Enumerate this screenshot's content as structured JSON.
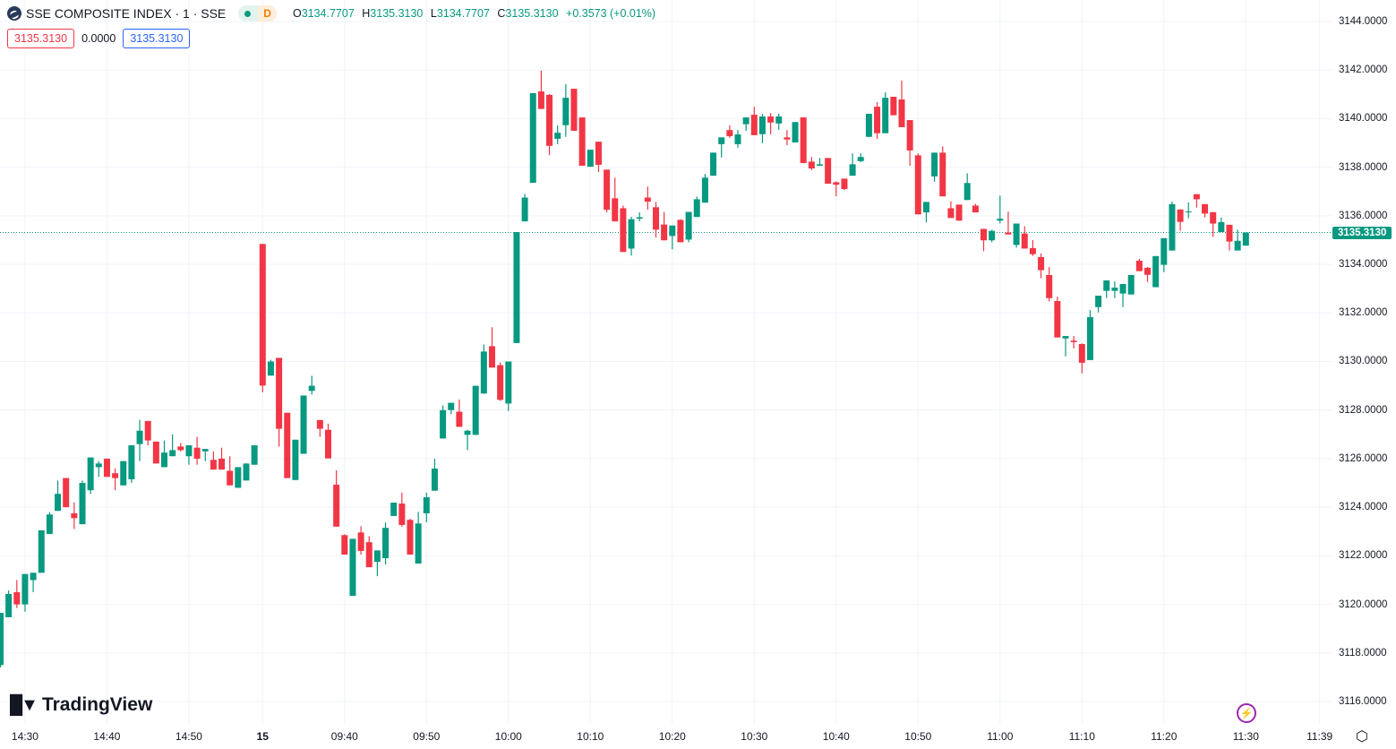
{
  "header": {
    "symbol": "SSE COMPOSITE INDEX · 1 · SSE",
    "badge_letter": "D",
    "o_label": "O",
    "o": "3134.7707",
    "h_label": "H",
    "h": "3135.3130",
    "l_label": "L",
    "l": "3134.7707",
    "c_label": "C",
    "c": "3135.3130",
    "change": "+0.3573 (+0.01%)"
  },
  "row2": {
    "sell": "3135.3130",
    "spread": "0.0000",
    "buy": "3135.3130"
  },
  "last_price": "3135.3130",
  "logo_text": "TradingView",
  "icons": {
    "symbol": "sse-logo-icon",
    "bolt": "lightning-icon",
    "settings": "gear-icon"
  },
  "colors": {
    "up": "#089981",
    "down": "#F23645",
    "grid": "#f0f3fa"
  },
  "chart_data": {
    "type": "candlestick",
    "title": "SSE COMPOSITE INDEX · 1 · SSE",
    "ylim": [
      3116,
      3144
    ],
    "y_ticks": [
      "3116.0000",
      "3118.0000",
      "3120.0000",
      "3122.0000",
      "3124.0000",
      "3126.0000",
      "3128.0000",
      "3130.0000",
      "3132.0000",
      "3134.0000",
      "3136.0000",
      "3138.0000",
      "3140.0000",
      "3142.0000",
      "3144.0000"
    ],
    "x_ticks": [
      {
        "label": "14:30",
        "index": 3
      },
      {
        "label": "14:40",
        "index": 13
      },
      {
        "label": "14:50",
        "index": 23
      },
      {
        "label": "15",
        "index": 32
      },
      {
        "label": "09:40",
        "index": 42
      },
      {
        "label": "09:50",
        "index": 52
      },
      {
        "label": "10:00",
        "index": 62
      },
      {
        "label": "10:10",
        "index": 72
      },
      {
        "label": "10:20",
        "index": 82
      },
      {
        "label": "10:30",
        "index": 92
      },
      {
        "label": "10:40",
        "index": 102
      },
      {
        "label": "10:50",
        "index": 112
      },
      {
        "label": "11:00",
        "index": 122
      },
      {
        "label": "11:10",
        "index": 132
      },
      {
        "label": "11:20",
        "index": 142
      },
      {
        "label": "11:30",
        "index": 152
      },
      {
        "label": "11:39",
        "index": 161
      }
    ],
    "ohlc_fields": [
      "open",
      "high",
      "low",
      "close"
    ],
    "candles": [
      [
        3117.5,
        3119.65,
        3117.4,
        3119.65
      ],
      [
        3119.47,
        3120.57,
        3119.47,
        3120.43
      ],
      [
        3120.5,
        3121.0,
        3119.85,
        3120.0
      ],
      [
        3120.0,
        3121.25,
        3119.7,
        3121.25
      ],
      [
        3121.0,
        3121.3,
        3120.5,
        3121.3
      ],
      [
        3121.3,
        3123.05,
        3121.3,
        3123.05
      ],
      [
        3122.9,
        3123.8,
        3122.9,
        3123.7
      ],
      [
        3123.85,
        3125.1,
        3123.85,
        3124.55
      ],
      [
        3125.2,
        3125.2,
        3124.0,
        3124.0
      ],
      [
        3123.75,
        3124.2,
        3123.1,
        3123.55
      ],
      [
        3123.3,
        3125.1,
        3123.3,
        3125.0
      ],
      [
        3124.7,
        3126.05,
        3124.55,
        3126.05
      ],
      [
        3125.65,
        3125.9,
        3125.25,
        3125.8
      ],
      [
        3126.0,
        3126.0,
        3125.25,
        3125.25
      ],
      [
        3125.4,
        3125.6,
        3124.7,
        3125.2
      ],
      [
        3124.9,
        3125.9,
        3124.9,
        3125.9
      ],
      [
        3125.15,
        3126.55,
        3125.0,
        3126.55
      ],
      [
        3126.6,
        3127.6,
        3125.9,
        3127.15
      ],
      [
        3127.55,
        3127.55,
        3126.55,
        3126.75
      ],
      [
        3126.7,
        3126.7,
        3125.8,
        3125.8
      ],
      [
        3125.65,
        3126.75,
        3125.65,
        3126.25
      ],
      [
        3126.1,
        3127.0,
        3126.1,
        3126.35
      ],
      [
        3126.5,
        3126.65,
        3126.3,
        3126.35
      ],
      [
        3126.1,
        3126.55,
        3125.75,
        3126.55
      ],
      [
        3126.45,
        3126.9,
        3125.75,
        3126.0
      ],
      [
        3126.3,
        3126.4,
        3125.9,
        3126.4
      ],
      [
        3125.95,
        3126.3,
        3125.55,
        3125.55
      ],
      [
        3126.0,
        3126.45,
        3125.55,
        3125.55
      ],
      [
        3125.5,
        3126.1,
        3124.9,
        3124.9
      ],
      [
        3124.8,
        3125.65,
        3124.8,
        3125.65
      ],
      [
        3125.1,
        3125.8,
        3125.1,
        3125.8
      ],
      [
        3125.75,
        3126.55,
        3125.75,
        3126.55
      ],
      [
        3134.84,
        3134.84,
        3128.73,
        3129.01
      ],
      [
        3129.42,
        3130.07,
        3129.42,
        3130.0
      ],
      [
        3130.15,
        3130.15,
        3126.5,
        3127.23
      ],
      [
        3127.89,
        3127.89,
        3125.2,
        3125.2
      ],
      [
        3125.12,
        3126.78,
        3125.12,
        3126.78
      ],
      [
        3126.2,
        3128.6,
        3126.2,
        3128.6
      ],
      [
        3128.79,
        3129.41,
        3128.64,
        3129.0
      ],
      [
        3127.59,
        3127.59,
        3126.9,
        3127.23
      ],
      [
        3127.19,
        3127.44,
        3126.01,
        3126.01
      ],
      [
        3124.93,
        3125.52,
        3123.2,
        3123.2
      ],
      [
        3122.85,
        3122.89,
        3122.05,
        3122.05
      ],
      [
        3120.35,
        3122.7,
        3120.35,
        3122.7
      ],
      [
        3122.96,
        3123.22,
        3122.05,
        3122.2
      ],
      [
        3122.56,
        3122.81,
        3121.53,
        3121.53
      ],
      [
        3121.75,
        3122.22,
        3121.16,
        3122.22
      ],
      [
        3121.9,
        3123.37,
        3121.64,
        3123.15
      ],
      [
        3123.64,
        3124.19,
        3123.64,
        3124.19
      ],
      [
        3124.15,
        3124.6,
        3123.2,
        3123.27
      ],
      [
        3123.48,
        3123.52,
        3122.05,
        3122.05
      ],
      [
        3121.68,
        3123.81,
        3121.68,
        3123.33
      ],
      [
        3123.75,
        3124.6,
        3123.38,
        3124.41
      ],
      [
        3124.68,
        3126.0,
        3124.68,
        3125.59
      ],
      [
        3126.83,
        3128.19,
        3126.83,
        3128.0
      ],
      [
        3128.0,
        3128.3,
        3127.83,
        3128.3
      ],
      [
        3127.93,
        3128.44,
        3127.31,
        3127.31
      ],
      [
        3126.98,
        3127.19,
        3126.35,
        3127.15
      ],
      [
        3126.98,
        3129.0,
        3126.98,
        3129.0
      ],
      [
        3128.68,
        3130.7,
        3128.68,
        3130.41
      ],
      [
        3130.63,
        3131.41,
        3129.75,
        3129.75
      ],
      [
        3129.85,
        3129.96,
        3128.38,
        3128.42
      ],
      [
        3128.27,
        3130.0,
        3127.96,
        3130.0
      ],
      [
        3130.76,
        3135.33,
        3130.76,
        3135.33
      ],
      [
        3135.77,
        3136.9,
        3135.77,
        3136.75
      ],
      [
        3137.36,
        3141.05,
        3137.36,
        3141.05
      ],
      [
        3141.12,
        3141.98,
        3140.4,
        3140.4
      ],
      [
        3140.98,
        3141.01,
        3138.5,
        3138.88
      ],
      [
        3139.17,
        3139.72,
        3138.95,
        3139.42
      ],
      [
        3139.73,
        3141.42,
        3139.25,
        3140.86
      ],
      [
        3141.23,
        3141.23,
        3139.5,
        3139.5
      ],
      [
        3140.05,
        3140.05,
        3138.06,
        3138.06
      ],
      [
        3138.02,
        3138.72,
        3138.02,
        3138.72
      ],
      [
        3139.05,
        3139.05,
        3137.8,
        3138.1
      ],
      [
        3137.9,
        3137.9,
        3136.14,
        3136.25
      ],
      [
        3136.72,
        3137.57,
        3135.77,
        3135.77
      ],
      [
        3136.31,
        3136.42,
        3134.51,
        3134.51
      ],
      [
        3134.65,
        3135.96,
        3134.36,
        3135.86
      ],
      [
        3135.88,
        3136.14,
        3135.77,
        3135.94
      ],
      [
        3136.75,
        3137.2,
        3136.25,
        3136.58
      ],
      [
        3136.35,
        3136.57,
        3135.1,
        3135.43
      ],
      [
        3135.64,
        3136.16,
        3134.99,
        3134.99
      ],
      [
        3135.17,
        3135.6,
        3134.62,
        3135.6
      ],
      [
        3135.83,
        3135.86,
        3134.91,
        3134.91
      ],
      [
        3135.02,
        3136.16,
        3134.91,
        3136.16
      ],
      [
        3135.95,
        3136.79,
        3135.95,
        3136.68
      ],
      [
        3136.54,
        3137.72,
        3136.54,
        3137.57
      ],
      [
        3137.65,
        3138.6,
        3137.65,
        3138.6
      ],
      [
        3138.95,
        3139.23,
        3138.4,
        3139.23
      ],
      [
        3139.53,
        3139.72,
        3139.21,
        3139.28
      ],
      [
        3138.95,
        3139.53,
        3138.8,
        3139.35
      ],
      [
        3139.77,
        3140.05,
        3139.5,
        3140.05
      ],
      [
        3140.16,
        3140.49,
        3139.32,
        3139.32
      ],
      [
        3139.36,
        3140.2,
        3138.99,
        3140.09
      ],
      [
        3140.09,
        3140.23,
        3139.36,
        3139.84
      ],
      [
        3139.8,
        3140.2,
        3139.54,
        3140.09
      ],
      [
        3139.23,
        3139.53,
        3138.91,
        3139.14
      ],
      [
        3139.02,
        3139.86,
        3139.02,
        3139.86
      ],
      [
        3140.05,
        3140.05,
        3138.17,
        3138.17
      ],
      [
        3138.23,
        3138.42,
        3137.88,
        3137.95
      ],
      [
        3138.06,
        3138.38,
        3138.06,
        3138.12
      ],
      [
        3138.38,
        3138.38,
        3137.32,
        3137.32
      ],
      [
        3137.38,
        3137.42,
        3136.8,
        3137.28
      ],
      [
        3137.53,
        3137.53,
        3137.06,
        3137.1
      ],
      [
        3137.65,
        3138.57,
        3137.65,
        3138.12
      ],
      [
        3138.25,
        3138.57,
        3138.21,
        3138.42
      ],
      [
        3139.25,
        3140.2,
        3139.25,
        3140.2
      ],
      [
        3140.49,
        3140.68,
        3139.17,
        3139.4
      ],
      [
        3139.4,
        3141.09,
        3139.4,
        3140.86
      ],
      [
        3140.9,
        3140.9,
        3140.14,
        3140.14
      ],
      [
        3140.79,
        3141.57,
        3139.65,
        3139.65
      ],
      [
        3139.94,
        3139.94,
        3138.06,
        3138.69
      ],
      [
        3138.49,
        3138.57,
        3136.06,
        3136.06
      ],
      [
        3136.14,
        3136.57,
        3135.73,
        3136.57
      ],
      [
        3137.62,
        3138.6,
        3137.4,
        3138.6
      ],
      [
        3138.6,
        3138.86,
        3136.8,
        3136.8
      ],
      [
        3136.31,
        3136.6,
        3135.91,
        3135.91
      ],
      [
        3136.46,
        3136.46,
        3135.8,
        3135.8
      ],
      [
        3136.65,
        3137.75,
        3136.65,
        3137.35
      ],
      [
        3136.42,
        3136.49,
        3136.14,
        3136.14
      ],
      [
        3135.46,
        3135.46,
        3134.54,
        3134.99
      ],
      [
        3134.99,
        3135.42,
        3134.91,
        3135.38
      ],
      [
        3135.8,
        3136.83,
        3135.69,
        3135.88
      ],
      [
        3135.31,
        3136.17,
        3135.23,
        3135.23
      ],
      [
        3134.8,
        3135.68,
        3134.69,
        3135.68
      ],
      [
        3135.27,
        3135.57,
        3134.65,
        3134.65
      ],
      [
        3134.67,
        3135.0,
        3134.35,
        3134.42
      ],
      [
        3134.3,
        3134.45,
        3133.43,
        3133.76
      ],
      [
        3133.56,
        3133.89,
        3132.47,
        3132.61
      ],
      [
        3132.49,
        3132.67,
        3130.99,
        3130.99
      ],
      [
        3130.95,
        3131.05,
        3130.21,
        3131.05
      ],
      [
        3130.86,
        3131.05,
        3130.54,
        3130.8
      ],
      [
        3130.72,
        3130.75,
        3129.51,
        3129.95
      ],
      [
        3130.06,
        3132.12,
        3130.06,
        3131.83
      ],
      [
        3132.24,
        3132.71,
        3132.02,
        3132.71
      ],
      [
        3132.91,
        3133.34,
        3132.61,
        3133.34
      ],
      [
        3132.91,
        3133.3,
        3132.61,
        3133.04
      ],
      [
        3132.8,
        3133.19,
        3132.24,
        3133.19
      ],
      [
        3132.76,
        3133.56,
        3132.76,
        3133.56
      ],
      [
        3134.15,
        3134.23,
        3133.72,
        3133.72
      ],
      [
        3133.86,
        3133.89,
        3133.28,
        3133.57
      ],
      [
        3133.06,
        3134.34,
        3133.06,
        3134.34
      ],
      [
        3133.98,
        3135.08,
        3133.68,
        3135.08
      ],
      [
        3134.57,
        3136.59,
        3134.57,
        3136.48
      ],
      [
        3136.26,
        3136.26,
        3135.38,
        3135.75
      ],
      [
        3136.16,
        3136.55,
        3135.9,
        3136.18
      ],
      [
        3136.89,
        3136.89,
        3136.34,
        3136.68
      ],
      [
        3136.48,
        3136.48,
        3135.94,
        3136.09
      ],
      [
        3136.15,
        3136.15,
        3135.13,
        3135.68
      ],
      [
        3135.33,
        3135.93,
        3135.33,
        3135.74
      ],
      [
        3135.63,
        3135.63,
        3134.57,
        3134.94
      ],
      [
        3134.57,
        3135.43,
        3134.57,
        3134.97
      ],
      [
        3134.7707,
        3135.313,
        3134.7707,
        3135.313
      ]
    ],
    "last_price": 3135.313,
    "grid": true
  }
}
